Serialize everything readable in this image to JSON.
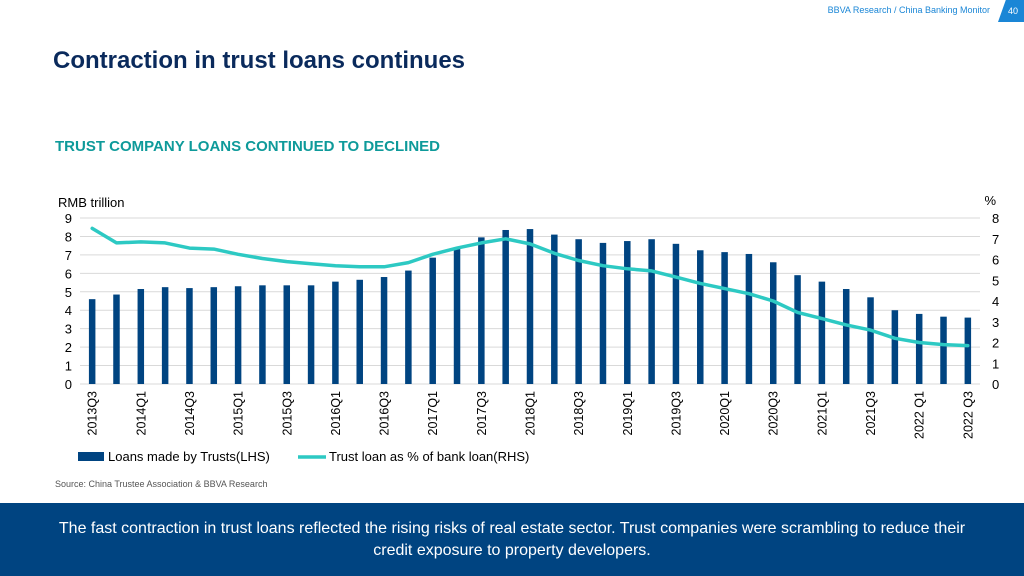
{
  "header": {
    "source_label": "BBVA Research / China Banking Monitor",
    "page_number": "40"
  },
  "slide": {
    "title": "Contraction in trust loans continues",
    "subtitle": "TRUST COMPANY LOANS CONTINUED TO DECLINED",
    "source": "Source: China Trustee Association & BBVA Research",
    "footer_text": "The fast contraction in trust loans reflected the rising risks of real estate sector. Trust companies were scrambling to reduce their credit exposure to property developers."
  },
  "colors": {
    "bar": "#004481",
    "line": "#2dc9c3",
    "title": "#0a2a5c",
    "subtitle": "#0e9a9a",
    "footer_bg": "#004481"
  },
  "chart_data": {
    "type": "bar+line",
    "ylabel_left": "RMB trillion",
    "ylabel_right": "%",
    "ylim_left": [
      0,
      9
    ],
    "ylim_right": [
      0,
      8
    ],
    "yticks_left": [
      "0",
      "1",
      "2",
      "3",
      "4",
      "5",
      "6",
      "7",
      "8",
      "9"
    ],
    "yticks_right": [
      "0",
      "1",
      "2",
      "3",
      "4",
      "5",
      "6",
      "7",
      "8"
    ],
    "grid": true,
    "legend_position": "bottom",
    "categories": [
      "2013Q3",
      "2013Q4",
      "2014Q1",
      "2014Q2",
      "2014Q3",
      "2014Q4",
      "2015Q1",
      "2015Q2",
      "2015Q3",
      "2015Q4",
      "2016Q1",
      "2016Q2",
      "2016Q3",
      "2016Q4",
      "2017Q1",
      "2017Q2",
      "2017Q3",
      "2017Q4",
      "2018Q1",
      "2018Q2",
      "2018Q3",
      "2018Q4",
      "2019Q1",
      "2019Q2",
      "2019Q3",
      "2019Q4",
      "2020Q1",
      "2020Q2",
      "2020Q3",
      "2020Q4",
      "2021Q1",
      "2021Q2",
      "2021Q3",
      "2021Q4",
      "2022 Q1",
      "2022Q2",
      "2022 Q3"
    ],
    "tick_labels": [
      "2013Q3",
      "2014Q1",
      "2014Q3",
      "2015Q1",
      "2015Q3",
      "2016Q1",
      "2016Q3",
      "2017Q1",
      "2017Q3",
      "2018Q1",
      "2018Q3",
      "2019Q1",
      "2019Q3",
      "2020Q1",
      "2020Q3",
      "2021Q1",
      "2021Q3",
      "2022 Q1",
      "2022 Q3"
    ],
    "series": [
      {
        "name": "Loans made by Trusts(LHS)",
        "type": "bar",
        "axis": "left",
        "values": [
          4.6,
          4.85,
          5.15,
          5.25,
          5.2,
          5.25,
          5.3,
          5.35,
          5.35,
          5.35,
          5.55,
          5.65,
          5.8,
          6.15,
          6.85,
          7.4,
          7.95,
          8.35,
          8.4,
          8.1,
          7.85,
          7.65,
          7.75,
          7.85,
          7.6,
          7.25,
          7.15,
          7.05,
          6.6,
          5.9,
          5.55,
          5.15,
          4.7,
          4.0,
          3.8,
          3.65,
          3.6
        ]
      },
      {
        "name": "Trust loan as % of bank loan(RHS)",
        "type": "line",
        "axis": "right",
        "values": [
          7.5,
          6.8,
          6.85,
          6.8,
          6.55,
          6.5,
          6.25,
          6.05,
          5.9,
          5.8,
          5.7,
          5.65,
          5.65,
          5.85,
          6.25,
          6.55,
          6.8,
          7.0,
          6.75,
          6.3,
          5.95,
          5.7,
          5.55,
          5.45,
          5.15,
          4.85,
          4.6,
          4.35,
          4.0,
          3.45,
          3.15,
          2.85,
          2.6,
          2.2,
          2.0,
          1.9,
          1.85
        ]
      }
    ]
  }
}
